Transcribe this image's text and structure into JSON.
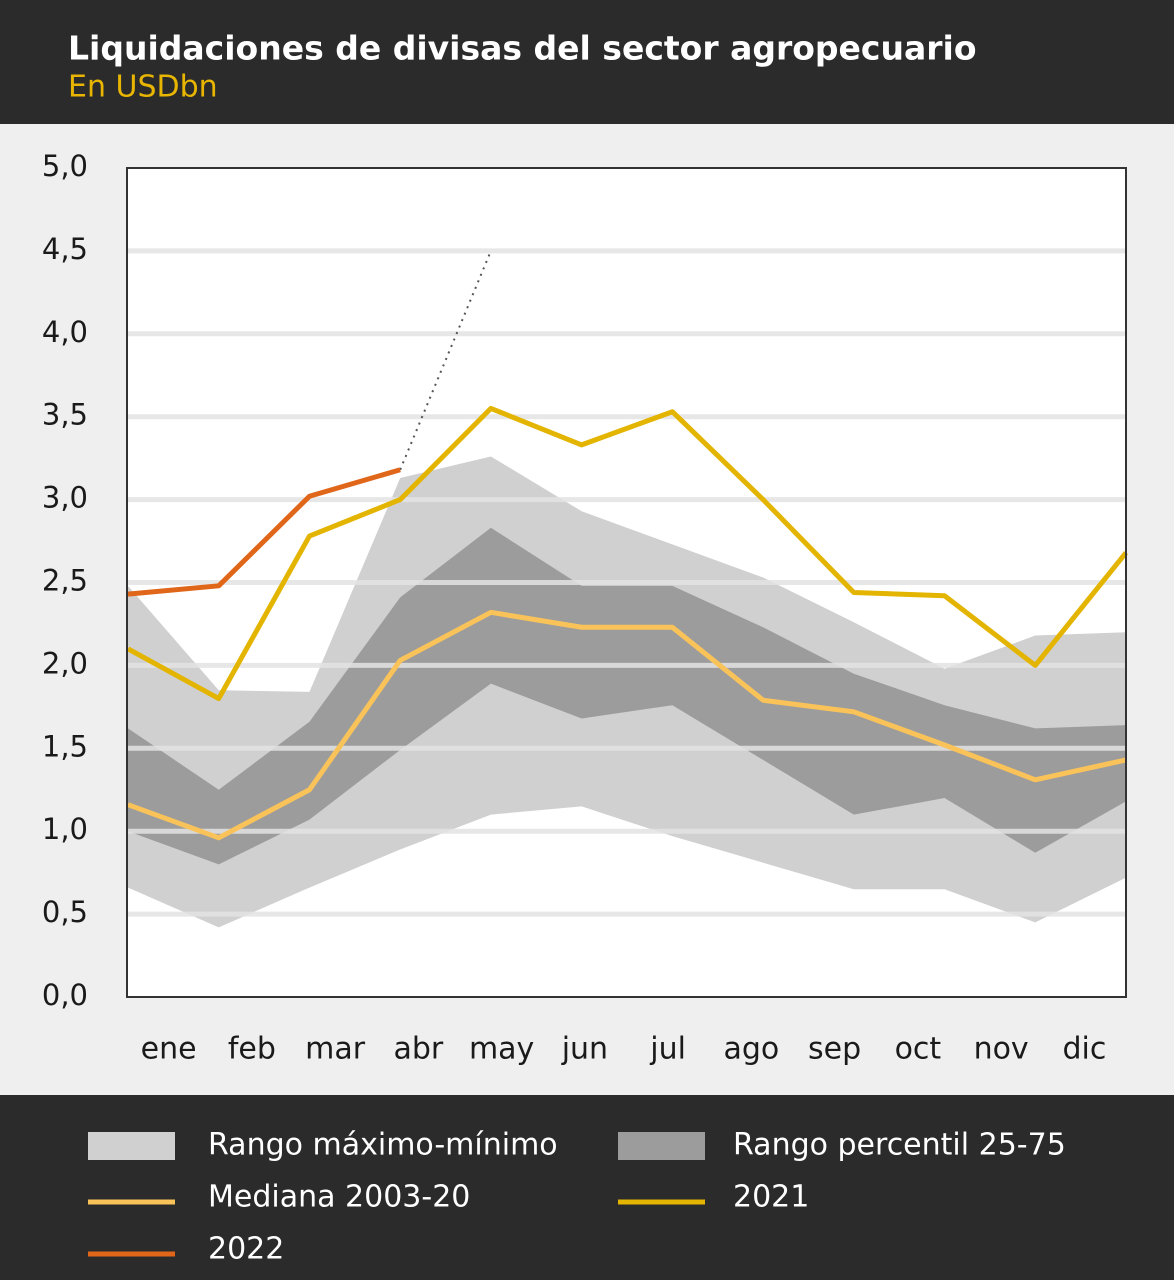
{
  "chart_data": {
    "type": "line",
    "title": "Liquidaciones de divisas del sector agropecuario",
    "subtitle": "En USDbn",
    "categories": [
      "ene",
      "feb",
      "mar",
      "abr",
      "may",
      "jun",
      "jul",
      "ago",
      "sep",
      "oct",
      "nov",
      "dic"
    ],
    "ylim": [
      0,
      5
    ],
    "yticks": [
      {
        "value": 0,
        "label": "0,0"
      },
      {
        "value": 0.5,
        "label": "0,5"
      },
      {
        "value": 1,
        "label": "1,0"
      },
      {
        "value": 1.5,
        "label": "1,5"
      },
      {
        "value": 2,
        "label": "2,0"
      },
      {
        "value": 2.5,
        "label": "2,5"
      },
      {
        "value": 3,
        "label": "3,0"
      },
      {
        "value": 3.5,
        "label": "3,5"
      },
      {
        "value": 4,
        "label": "4,0"
      },
      {
        "value": 4.5,
        "label": "4,5"
      },
      {
        "value": 5,
        "label": "5,0"
      }
    ],
    "grid": true,
    "bands": [
      {
        "name": "Rango máximo-mínimo",
        "color": "#d0d0d0",
        "upper": [
          2.48,
          1.85,
          1.84,
          3.13,
          3.26,
          2.93,
          2.73,
          2.53,
          2.26,
          1.98,
          2.18,
          2.2
        ],
        "lower": [
          0.66,
          0.42,
          0.66,
          0.89,
          1.1,
          1.15,
          0.97,
          0.81,
          0.65,
          0.65,
          0.45,
          0.72
        ]
      },
      {
        "name": "Rango percentil 25-75",
        "color": "#9c9c9c",
        "upper": [
          1.62,
          1.25,
          1.66,
          2.41,
          2.83,
          2.48,
          2.48,
          2.23,
          1.95,
          1.76,
          1.62,
          1.64
        ],
        "lower": [
          1.0,
          0.8,
          1.07,
          1.49,
          1.89,
          1.68,
          1.76,
          1.43,
          1.1,
          1.2,
          0.87,
          1.18
        ]
      }
    ],
    "series": [
      {
        "name": "Mediana 2003-20",
        "color": "#f9c35a",
        "values": [
          1.16,
          0.96,
          1.25,
          2.03,
          2.32,
          2.23,
          2.23,
          1.79,
          1.72,
          1.52,
          1.31,
          1.43
        ]
      },
      {
        "name": "2021",
        "color": "#e3b400",
        "values": [
          2.1,
          1.8,
          2.78,
          3.0,
          3.55,
          3.33,
          3.53,
          3.0,
          2.44,
          2.42,
          2.0,
          2.68
        ]
      },
      {
        "name": "2022",
        "color": "#e0661a",
        "values": [
          2.43,
          2.48,
          3.02,
          3.18,
          null,
          null,
          null,
          null,
          null,
          null,
          null,
          null
        ]
      }
    ],
    "dotted_line": {
      "color": "#555555",
      "values": [
        null,
        null,
        null,
        3.18,
        4.5,
        null,
        null,
        null,
        null,
        null,
        null,
        null
      ]
    }
  }
}
